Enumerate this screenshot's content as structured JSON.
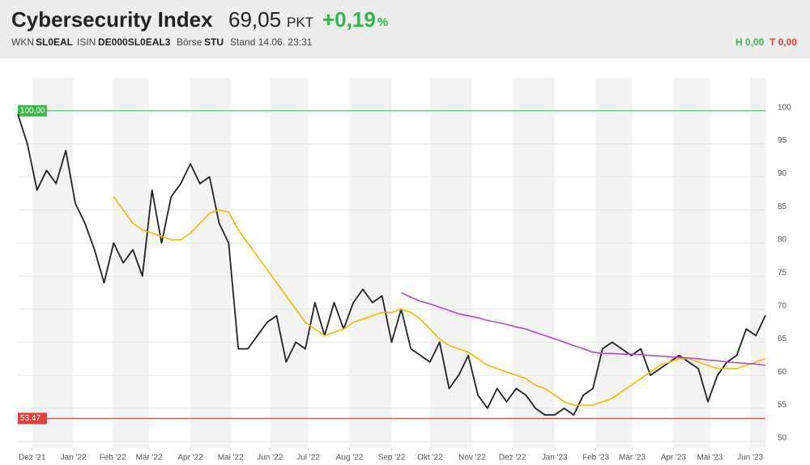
{
  "header": {
    "title": "Cybersecurity Index",
    "price": "69,05",
    "unit": "PKT",
    "change": "+0,19",
    "change_unit": "%",
    "wkn_label": "WKN",
    "wkn": "SL0EAL",
    "isin_label": "ISIN",
    "isin": "DE000SL0EAL3",
    "exchange_label": "Börse",
    "exchange": "STU",
    "stand": "Stand 14.06. 23:31",
    "high": "H 0,00",
    "low": "T 0,00"
  },
  "chart_data": {
    "type": "line",
    "x": [
      0,
      1,
      2,
      3,
      4,
      5,
      6,
      7,
      8,
      9,
      10,
      11,
      12,
      13,
      14,
      15,
      16,
      17,
      18,
      19,
      20,
      21,
      22,
      23,
      24,
      25,
      26,
      27,
      28,
      29,
      30,
      31,
      32,
      33,
      34,
      35,
      36,
      37,
      38,
      39,
      40,
      41,
      42,
      43,
      44,
      45,
      46,
      47,
      48,
      49,
      50,
      51,
      52,
      53,
      54,
      55,
      56,
      57,
      58,
      59,
      60,
      61,
      62,
      63,
      64,
      65,
      66,
      67,
      68,
      69,
      70,
      71,
      72,
      73,
      74,
      75,
      76,
      77,
      78
    ],
    "series": [
      {
        "color": "#222222",
        "values": [
          99.5,
          95,
          88,
          91,
          89,
          94,
          86,
          83,
          79,
          74,
          80,
          77,
          79,
          75,
          88,
          80,
          87,
          89,
          92,
          89,
          90,
          83,
          80,
          64,
          64,
          66,
          68,
          69,
          62,
          65,
          64,
          71,
          66,
          71,
          67,
          71,
          73,
          71,
          72,
          65,
          70,
          64,
          63,
          62,
          65,
          58,
          60,
          63,
          57,
          55,
          58,
          56,
          58,
          57,
          55,
          54,
          54,
          55,
          54,
          57,
          58,
          64,
          65,
          64,
          63,
          64,
          60,
          61,
          62,
          63,
          62,
          61,
          56,
          60,
          62,
          63,
          67,
          66,
          69.05
        ]
      },
      {
        "color": "#f5b800",
        "values": [
          null,
          null,
          null,
          null,
          null,
          null,
          null,
          null,
          null,
          null,
          87,
          85,
          83,
          82,
          81.5,
          81,
          80.5,
          80.5,
          81.5,
          83,
          84.5,
          85,
          84.7,
          82,
          80,
          78,
          76,
          74,
          72,
          70,
          68,
          67,
          66,
          66.5,
          67,
          68,
          68.5,
          69,
          69.5,
          69.5,
          70,
          69.5,
          68.5,
          67,
          65.5,
          64.5,
          64,
          63.5,
          62.5,
          61.5,
          61,
          60.5,
          60,
          59.5,
          58.5,
          58,
          57,
          56,
          55.5,
          55.5,
          55.5,
          56,
          56.5,
          57.5,
          58.5,
          59.5,
          60.5,
          61.5,
          62,
          62.5,
          62.5,
          62,
          61.5,
          61,
          61,
          61,
          61.5,
          62,
          62.5
        ]
      },
      {
        "color": "#b04ac0",
        "values": [
          null,
          null,
          null,
          null,
          null,
          null,
          null,
          null,
          null,
          null,
          null,
          null,
          null,
          null,
          null,
          null,
          null,
          null,
          null,
          null,
          null,
          null,
          null,
          null,
          null,
          null,
          null,
          null,
          null,
          null,
          null,
          null,
          null,
          null,
          null,
          null,
          null,
          null,
          null,
          null,
          72.5,
          71.8,
          71.2,
          70.8,
          70.3,
          69.8,
          69.3,
          69,
          68.7,
          68.3,
          68,
          67.7,
          67.3,
          67,
          66.5,
          66,
          65.5,
          65,
          64.5,
          64,
          63.5,
          63.3,
          63.3,
          63.2,
          63.2,
          63.1,
          63,
          62.9,
          62.8,
          62.7,
          62.6,
          62.5,
          62.3,
          62.2,
          62,
          61.9,
          61.8,
          61.7,
          61.5
        ]
      }
    ],
    "xlim": [
      0,
      78
    ],
    "xticks": [
      {
        "value": 1.5,
        "label": "Dez '21"
      },
      {
        "value": 5.8,
        "label": "Jan '22"
      },
      {
        "value": 9.9,
        "label": "Feb '22"
      },
      {
        "value": 13.7,
        "label": "Mär '22"
      },
      {
        "value": 18,
        "label": "Apr '22"
      },
      {
        "value": 22.2,
        "label": "Mai '22"
      },
      {
        "value": 26.3,
        "label": "Jun '22"
      },
      {
        "value": 30.3,
        "label": "Jul '22"
      },
      {
        "value": 34.6,
        "label": "Aug '22"
      },
      {
        "value": 39,
        "label": "Sep '22"
      },
      {
        "value": 43,
        "label": "Okt '22"
      },
      {
        "value": 47.4,
        "label": "Nov '22"
      },
      {
        "value": 51.6,
        "label": "Dez '22"
      },
      {
        "value": 56,
        "label": "Jan '23"
      },
      {
        "value": 60.3,
        "label": "Feb '23"
      },
      {
        "value": 64.1,
        "label": "Mär '23"
      },
      {
        "value": 68.4,
        "label": "Apr '23"
      },
      {
        "value": 72.2,
        "label": "Mai '23"
      },
      {
        "value": 76.4,
        "label": "Jun '23"
      }
    ],
    "ylim": [
      49,
      105
    ],
    "yticks": [
      50,
      55,
      60,
      65,
      70,
      75,
      80,
      85,
      90,
      95,
      100
    ],
    "grid": true,
    "hlines": [
      {
        "value": 100,
        "label": "100,00",
        "color": "#3cb84a"
      },
      {
        "value": 53.47,
        "label": "53,47",
        "color": "#e0413a"
      }
    ]
  }
}
